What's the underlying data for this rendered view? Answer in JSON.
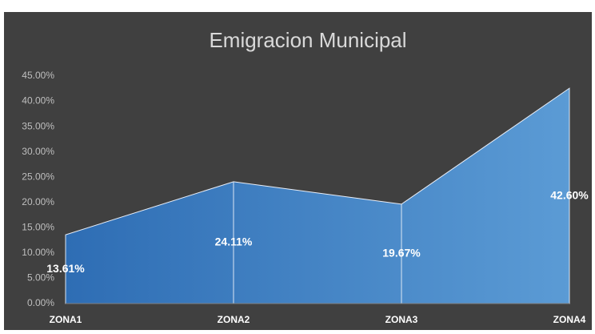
{
  "chart_data": {
    "type": "area",
    "title": "Emigracion Municipal",
    "categories": [
      "ZONA1",
      "ZONA2",
      "ZONA3",
      "ZONA4"
    ],
    "values": [
      13.61,
      24.11,
      19.67,
      42.6
    ],
    "value_labels": [
      "13.61%",
      "24.11%",
      "19.67%",
      "42.60%"
    ],
    "color": "#5b9bd5",
    "color_dark": "#2e6db4",
    "ylim": [
      0,
      45
    ],
    "yticks": [
      {
        "value": 0,
        "label": "0.00%"
      },
      {
        "value": 5,
        "label": "5.00%"
      },
      {
        "value": 10,
        "label": "10.00%"
      },
      {
        "value": 15,
        "label": "15.00%"
      },
      {
        "value": 20,
        "label": "20.00%"
      },
      {
        "value": 25,
        "label": "25.00%"
      },
      {
        "value": 30,
        "label": "30.00%"
      },
      {
        "value": 35,
        "label": "35.00%"
      },
      {
        "value": 40,
        "label": "40.00%"
      },
      {
        "value": 45,
        "label": "45.00%"
      }
    ],
    "grid": false
  }
}
